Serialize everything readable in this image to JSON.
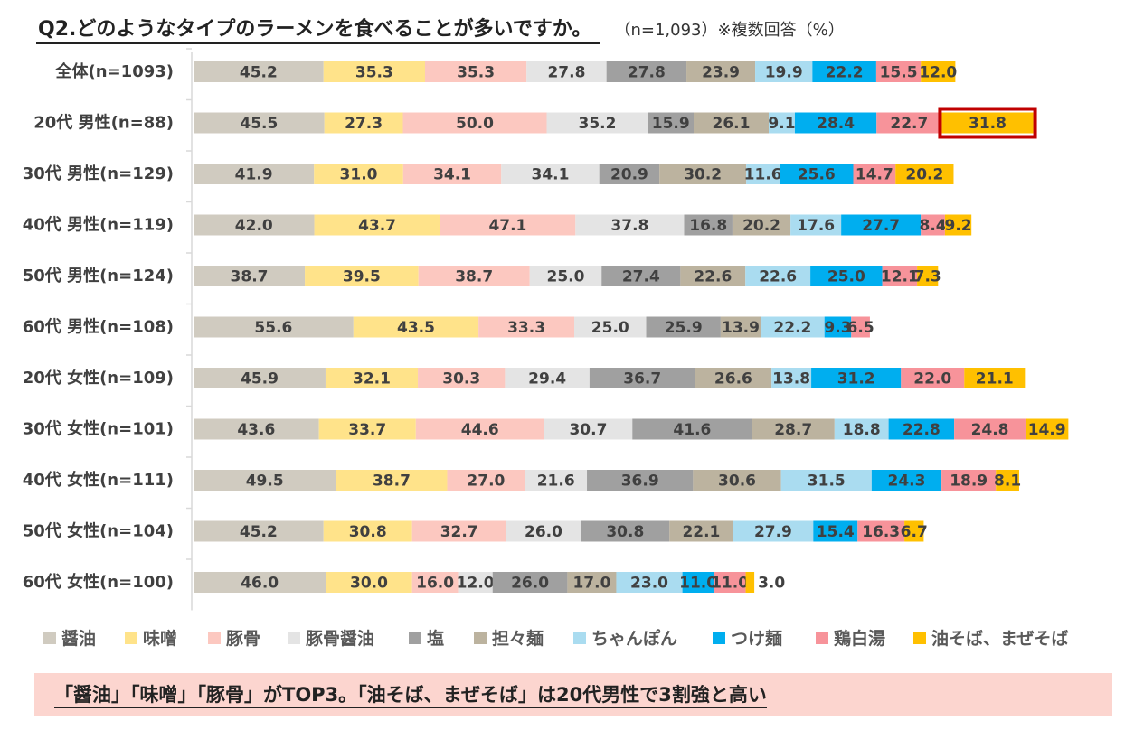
{
  "title": "Q2.どのようなタイプのラーメンを食べることが多いですか。",
  "note": "（n=1,093）※複数回答（%）",
  "footer": "「醤油」「味噌」「豚骨」がTOP3。「油そば、まぜそば」は20代男性で3割強と高い",
  "chart_data": {
    "type": "bar",
    "orientation": "horizontal",
    "stacked": true,
    "legend_position": "bottom",
    "categories": [
      "全体(n=1093)",
      "20代 男性(n=88)",
      "30代 男性(n=129)",
      "40代 男性(n=119)",
      "50代 男性(n=124)",
      "60代 男性(n=108)",
      "20代 女性(n=109)",
      "30代 女性(n=101)",
      "40代 女性(n=111)",
      "50代 女性(n=104)",
      "60代 女性(n=100)"
    ],
    "series": [
      {
        "name": "醤油",
        "color": "#d0cbc0",
        "values": [
          45.2,
          45.5,
          41.9,
          42.0,
          38.7,
          55.6,
          45.9,
          43.6,
          49.5,
          45.2,
          46.0
        ]
      },
      {
        "name": "味噌",
        "color": "#ffe38a",
        "values": [
          35.3,
          27.3,
          31.0,
          43.7,
          39.5,
          43.5,
          32.1,
          33.7,
          38.7,
          30.8,
          30.0
        ]
      },
      {
        "name": "豚骨",
        "color": "#fcc8c0",
        "values": [
          35.3,
          50.0,
          34.1,
          47.1,
          38.7,
          33.3,
          30.3,
          44.6,
          27.0,
          32.7,
          16.0
        ]
      },
      {
        "name": "豚骨醤油",
        "color": "#e4e4e4",
        "values": [
          27.8,
          35.2,
          34.1,
          37.8,
          25.0,
          25.0,
          29.4,
          30.7,
          21.6,
          26.0,
          12.0
        ]
      },
      {
        "name": "塩",
        "color": "#a0a0a0",
        "values": [
          27.8,
          15.9,
          20.9,
          16.8,
          27.4,
          25.9,
          36.7,
          41.6,
          36.9,
          30.8,
          26.0
        ]
      },
      {
        "name": "担々麺",
        "color": "#bcb39f",
        "values": [
          23.9,
          26.1,
          30.2,
          20.2,
          22.6,
          13.9,
          26.6,
          28.7,
          30.6,
          22.1,
          17.0
        ]
      },
      {
        "name": "ちゃんぽん",
        "color": "#aadcf0",
        "values": [
          19.9,
          9.1,
          11.6,
          17.6,
          22.6,
          22.2,
          13.8,
          18.8,
          31.5,
          27.9,
          23.0
        ]
      },
      {
        "name": "つけ麺",
        "color": "#00aeef",
        "values": [
          22.2,
          28.4,
          25.6,
          27.7,
          25.0,
          9.3,
          31.2,
          22.8,
          24.3,
          15.4,
          11.0
        ]
      },
      {
        "name": "鶏白湯",
        "color": "#f7939a",
        "values": [
          15.5,
          22.7,
          14.7,
          8.4,
          12.1,
          6.5,
          22.0,
          24.8,
          18.9,
          16.3,
          11.0
        ]
      },
      {
        "name": "油そば、まぜそば",
        "color": "#ffc000",
        "values": [
          12.0,
          31.8,
          20.2,
          9.2,
          7.3,
          0,
          21.1,
          14.9,
          8.1,
          6.7,
          3.0
        ]
      }
    ],
    "value_labels": [
      [
        "45.2",
        "35.3",
        "35.3",
        "27.8",
        "27.8",
        "23.9",
        "19.9",
        "22.2",
        "15.5",
        "12.0"
      ],
      [
        "45.5",
        "27.3",
        "50.0",
        "35.2",
        "15.9",
        "26.1",
        "9.1",
        "28.4",
        "22.7",
        "31.8"
      ],
      [
        "41.9",
        "31.0",
        "34.1",
        "34.1",
        "20.9",
        "30.2",
        "11.6",
        "25.6",
        "14.7",
        "20.2"
      ],
      [
        "42.0",
        "43.7",
        "47.1",
        "37.8",
        "16.8",
        "20.2",
        "17.6",
        "27.7",
        "8.4",
        "9.2"
      ],
      [
        "38.7",
        "39.5",
        "38.7",
        "25.0",
        "27.4",
        "22.6",
        "22.6",
        "25.0",
        "12.1",
        "7.3"
      ],
      [
        "55.6",
        "43.5",
        "33.3",
        "25.0",
        "25.9",
        "13.9",
        "22.2",
        "9.3",
        "6.5",
        ""
      ],
      [
        "45.9",
        "32.1",
        "30.3",
        "29.4",
        "36.7",
        "26.6",
        "13.8",
        "31.2",
        "22.0",
        "21.1"
      ],
      [
        "43.6",
        "33.7",
        "44.6",
        "30.7",
        "41.6",
        "28.7",
        "18.8",
        "22.8",
        "24.8",
        "14.9"
      ],
      [
        "49.5",
        "38.7",
        "27.0",
        "21.6",
        "36.9",
        "30.6",
        "31.5",
        "24.3",
        "18.9",
        "8.1"
      ],
      [
        "45.2",
        "30.8",
        "32.7",
        "26.0",
        "30.8",
        "22.1",
        "27.9",
        "15.4",
        "16.3",
        "6.7"
      ],
      [
        "46.0",
        "30.0",
        "16.0",
        "12.0",
        "26.0",
        "17.0",
        "23.0",
        "11.0",
        "11.0",
        "3.0"
      ]
    ],
    "highlight": {
      "category_index": 1,
      "series_index": 9,
      "color": "#c00000"
    }
  }
}
